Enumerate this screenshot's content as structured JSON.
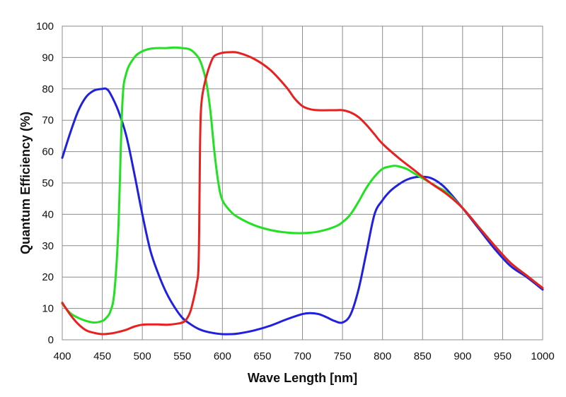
{
  "chart_data": {
    "type": "line",
    "title": "",
    "xlabel": "Wave Length [nm]",
    "ylabel": "Quantum Efficiency (%)",
    "xlim": [
      400,
      1000
    ],
    "ylim": [
      0,
      100
    ],
    "xticks": [
      400,
      450,
      500,
      550,
      600,
      650,
      700,
      750,
      800,
      850,
      900,
      950,
      1000
    ],
    "yticks": [
      0,
      10,
      20,
      30,
      40,
      50,
      60,
      70,
      80,
      90,
      100
    ],
    "grid": true,
    "legend": "none",
    "series": [
      {
        "color": "#2020e0",
        "x": [
          400,
          410,
          420,
          430,
          440,
          450,
          455,
          460,
          470,
          480,
          490,
          500,
          510,
          520,
          530,
          540,
          550,
          560,
          570,
          580,
          590,
          600,
          610,
          620,
          640,
          660,
          680,
          700,
          710,
          720,
          730,
          740,
          750,
          760,
          770,
          780,
          790,
          800,
          810,
          820,
          830,
          840,
          850,
          860,
          870,
          880,
          900,
          920,
          940,
          960,
          980,
          1000
        ],
        "y": [
          58,
          66,
          73,
          77.5,
          79.5,
          80,
          80,
          78.5,
          73,
          65,
          53,
          40,
          28.5,
          21,
          15,
          10.5,
          7,
          5,
          3.5,
          2.6,
          2.1,
          1.8,
          1.8,
          2,
          3,
          4.5,
          6.5,
          8.2,
          8.5,
          8.2,
          7.2,
          6,
          5.5,
          8,
          16,
          28,
          40,
          44.5,
          47.5,
          49.5,
          51,
          51.8,
          52,
          51.6,
          50.2,
          48,
          42,
          35.5,
          29,
          23.5,
          20,
          16
        ]
      },
      {
        "color": "#22e022",
        "x": [
          400,
          410,
          420,
          430,
          440,
          450,
          455,
          460,
          465,
          470,
          475,
          480,
          490,
          500,
          510,
          520,
          530,
          540,
          550,
          560,
          570,
          575,
          580,
          585,
          590,
          595,
          600,
          610,
          620,
          640,
          660,
          680,
          700,
          720,
          740,
          750,
          760,
          770,
          780,
          790,
          800,
          810,
          815,
          820,
          830,
          840,
          850,
          860,
          870,
          880,
          900,
          920,
          940,
          960,
          980,
          1000
        ],
        "y": [
          11.5,
          8.5,
          7,
          6,
          5.5,
          6,
          7,
          9,
          15,
          35,
          75,
          85,
          90,
          92,
          92.8,
          93,
          93,
          93.2,
          93,
          92.5,
          90,
          87,
          82,
          73,
          60,
          50,
          44.5,
          41,
          39,
          36.5,
          35,
          34.2,
          34,
          34.5,
          36,
          37.5,
          40,
          44,
          48.5,
          52,
          54.5,
          55.3,
          55.5,
          55.3,
          54.5,
          53,
          51.5,
          50,
          48.5,
          47,
          42,
          36,
          30,
          24.5,
          20.5,
          16.5
        ]
      },
      {
        "color": "#e82020",
        "x": [
          400,
          410,
          420,
          430,
          440,
          450,
          460,
          470,
          480,
          490,
          500,
          510,
          520,
          530,
          540,
          550,
          555,
          560,
          565,
          568,
          570,
          571,
          572,
          573,
          575,
          580,
          585,
          590,
          600,
          610,
          620,
          640,
          660,
          680,
          690,
          700,
          710,
          720,
          740,
          750,
          760,
          770,
          780,
          790,
          800,
          820,
          840,
          860,
          880,
          900,
          920,
          940,
          960,
          980,
          1000
        ],
        "y": [
          11.8,
          8,
          5,
          3,
          2.2,
          1.8,
          2,
          2.5,
          3.2,
          4.2,
          4.8,
          4.9,
          4.9,
          4.8,
          5,
          5.5,
          6.5,
          9,
          14,
          18,
          22,
          35,
          60,
          72,
          78,
          84,
          88,
          90.5,
          91.5,
          91.7,
          91.5,
          89.5,
          86,
          80.5,
          77,
          74.5,
          73.5,
          73.2,
          73.2,
          73.2,
          72.5,
          71,
          68.5,
          65.5,
          62.5,
          58,
          54,
          50,
          46.5,
          42,
          36,
          30,
          24.5,
          20.5,
          16.5
        ]
      }
    ]
  }
}
